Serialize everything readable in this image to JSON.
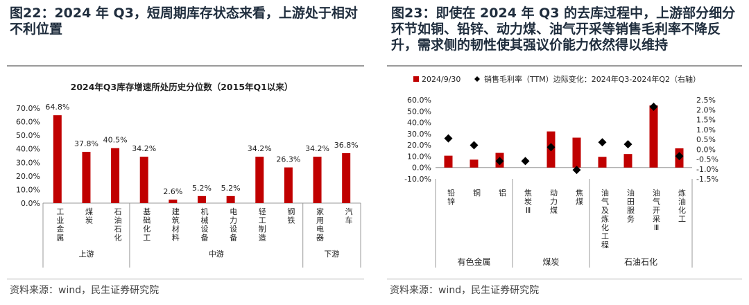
{
  "left": {
    "figure_title": "图22：2024 年 Q3，短周期库存状态来看，上游处于相对不利位置",
    "source": "资料来源：wind，民生证券研究院"
  },
  "right": {
    "figure_title": "图23：即使在 2024 年 Q3 的去库过程中，上游部分细分环节如铜、铅锌、动力煤、油气开采等销售毛利率不降反升，需求侧的韧性使其强议价能力依然得以维持",
    "source": "资料来源：wind，民生证券研究院"
  },
  "chart_data": [
    {
      "type": "bar",
      "title": "2024年Q3库存增速所处历史分位数（2015年Q1以来）",
      "categories": [
        "工业金属",
        "煤炭",
        "石油石化",
        "基础化工",
        "建筑材料",
        "机械设备",
        "电力设备",
        "轻工制造",
        "钢铁",
        "家用电器",
        "汽车"
      ],
      "values": [
        64.8,
        37.8,
        40.5,
        34.2,
        2.6,
        5.2,
        5.2,
        34.2,
        26.3,
        34.2,
        36.8
      ],
      "value_labels": [
        "64.8%",
        "37.8%",
        "40.5%",
        "34.2%",
        "2.6%",
        "5.2%",
        "5.2%",
        "34.2%",
        "26.3%",
        "34.2%",
        "36.8%"
      ],
      "groups": [
        {
          "name": "上游",
          "count": 3
        },
        {
          "name": "中游",
          "count": 6
        },
        {
          "name": "下游",
          "count": 2
        }
      ],
      "ylim": [
        0,
        70
      ],
      "yticks": [
        "0.0%",
        "10.0%",
        "20.0%",
        "30.0%",
        "40.0%",
        "50.0%",
        "60.0%",
        "70.0%"
      ],
      "color": "#c00000",
      "grid": false
    },
    {
      "type": "bar+scatter",
      "legend": [
        {
          "label": "2024/9/30",
          "marker": "square",
          "color": "#c00000"
        },
        {
          "label": "销售毛利率（TTM）边际变化：2024年Q3-2024年Q2（右轴）",
          "marker": "diamond",
          "color": "#000000"
        }
      ],
      "categories": [
        "铅锌",
        "铜",
        "铝",
        "焦炭Ⅲ",
        "动力煤",
        "焦煤",
        "油气及炼化工程",
        "油田服务",
        "油气开采Ⅲ",
        "炼油化工"
      ],
      "bar_values": [
        10.5,
        7.0,
        13.0,
        0.0,
        32.0,
        26.5,
        9.5,
        12.0,
        55.0,
        17.0
      ],
      "scatter_values": [
        0.55,
        0.2,
        -0.6,
        -0.6,
        0.1,
        -1.05,
        0.35,
        0.25,
        2.15,
        -0.35
      ],
      "groups": [
        {
          "name": "有色金属",
          "count": 3
        },
        {
          "name": "煤炭",
          "count": 3
        },
        {
          "name": "石油石化",
          "count": 4
        }
      ],
      "ylim_left": [
        -10,
        60
      ],
      "yticks_left": [
        "-10.0%",
        "0.0%",
        "10.0%",
        "20.0%",
        "30.0%",
        "40.0%",
        "50.0%",
        "60.0%"
      ],
      "ylim_right": [
        -1.5,
        2.5
      ],
      "yticks_right": [
        "-1.5%",
        "-1.0%",
        "-0.5%",
        "0.0%",
        "0.5%",
        "1.0%",
        "1.5%",
        "2.0%",
        "2.5%"
      ],
      "grid": false
    }
  ]
}
